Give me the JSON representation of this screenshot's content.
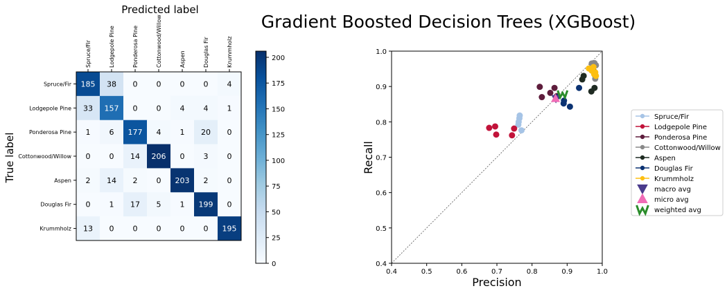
{
  "title": "Gradient Boosted Decision Trees (XGBoost)",
  "chart_data": [
    {
      "type": "heatmap",
      "title": "Predicted label",
      "xlabel": "Predicted label",
      "ylabel": "True label",
      "labels": [
        "Spruce/Fir",
        "Lodgepole Pine",
        "Ponderosa Pine",
        "Cottonwood/Willow",
        "Aspen",
        "Douglas Fir",
        "Krummholz"
      ],
      "matrix": [
        [
          185,
          38,
          0,
          0,
          0,
          0,
          4
        ],
        [
          33,
          157,
          0,
          0,
          4,
          4,
          1
        ],
        [
          1,
          6,
          177,
          4,
          1,
          20,
          0
        ],
        [
          0,
          0,
          14,
          206,
          0,
          3,
          0
        ],
        [
          2,
          14,
          2,
          0,
          203,
          2,
          0
        ],
        [
          0,
          1,
          17,
          5,
          1,
          199,
          0
        ],
        [
          13,
          0,
          0,
          0,
          0,
          0,
          195
        ]
      ],
      "colorbar": {
        "min": 0,
        "max": 206,
        "ticks": [
          "0",
          "25",
          "50",
          "75",
          "100",
          "125",
          "150",
          "175",
          "200"
        ],
        "colormap": "Blues"
      }
    },
    {
      "type": "scatter",
      "xlabel": "Precision",
      "ylabel": "Recall",
      "xlim": [
        0.4,
        1.0
      ],
      "ylim": [
        0.4,
        1.0
      ],
      "xticks": [
        "0.4",
        "0.5",
        "0.6",
        "0.7",
        "0.8",
        "0.9",
        "1.0"
      ],
      "yticks": [
        "0.4",
        "0.5",
        "0.6",
        "0.7",
        "0.8",
        "0.9",
        "1.0"
      ],
      "diagonal": true,
      "series": [
        {
          "name": "Spruce/Fir",
          "color": "#a6c4e6",
          "marker": "circle",
          "points": [
            [
              0.762,
              0.8
            ],
            [
              0.764,
              0.81
            ],
            [
              0.765,
              0.818
            ],
            [
              0.761,
              0.792
            ],
            [
              0.77,
              0.776
            ]
          ]
        },
        {
          "name": "Lodgepole Pine",
          "color": "#c2133a",
          "marker": "circle",
          "points": [
            [
              0.678,
              0.783
            ],
            [
              0.695,
              0.787
            ],
            [
              0.698,
              0.764
            ],
            [
              0.743,
              0.762
            ],
            [
              0.749,
              0.781
            ]
          ]
        },
        {
          "name": "Ponderosa Pine",
          "color": "#5e1d3c",
          "marker": "circle",
          "points": [
            [
              0.822,
              0.899
            ],
            [
              0.828,
              0.87
            ],
            [
              0.852,
              0.882
            ],
            [
              0.864,
              0.896
            ],
            [
              0.871,
              0.873
            ]
          ]
        },
        {
          "name": "Cottonwood/Willow",
          "color": "#888888",
          "marker": "circle",
          "points": [
            [
              0.97,
              0.965
            ],
            [
              0.975,
              0.955
            ],
            [
              0.978,
              0.966
            ],
            [
              0.979,
              0.932
            ],
            [
              0.98,
              0.922
            ],
            [
              0.982,
              0.96
            ]
          ]
        },
        {
          "name": "Aspen",
          "color": "#1f2b22",
          "marker": "circle",
          "points": [
            [
              0.943,
              0.92
            ],
            [
              0.947,
              0.93
            ],
            [
              0.969,
              0.886
            ],
            [
              0.978,
              0.896
            ],
            [
              0.975,
              0.945
            ]
          ]
        },
        {
          "name": "Douglas Fir",
          "color": "#0b3272",
          "marker": "circle",
          "points": [
            [
              0.87,
              0.87
            ],
            [
              0.89,
              0.852
            ],
            [
              0.891,
              0.86
            ],
            [
              0.908,
              0.843
            ],
            [
              0.934,
              0.896
            ]
          ]
        },
        {
          "name": "Krummholz",
          "color": "#fdbf11",
          "marker": "circle",
          "points": [
            [
              0.962,
              0.951
            ],
            [
              0.97,
              0.945
            ],
            [
              0.975,
              0.955
            ],
            [
              0.98,
              0.94
            ],
            [
              0.982,
              0.93
            ],
            [
              0.977,
              0.935
            ]
          ]
        }
      ],
      "averages": [
        {
          "name": "macro avg",
          "color": "#4a3b8c",
          "marker": "triangle-down",
          "points": [
            [
              0.868,
              0.866
            ]
          ]
        },
        {
          "name": "micro avg",
          "color": "#f06cb6",
          "marker": "triangle-up",
          "points": [
            [
              0.867,
              0.866
            ]
          ]
        },
        {
          "name": "weighted avg",
          "color": "#2a8c2a",
          "marker": "W",
          "points": [
            [
              0.887,
              0.879
            ]
          ]
        }
      ]
    }
  ]
}
